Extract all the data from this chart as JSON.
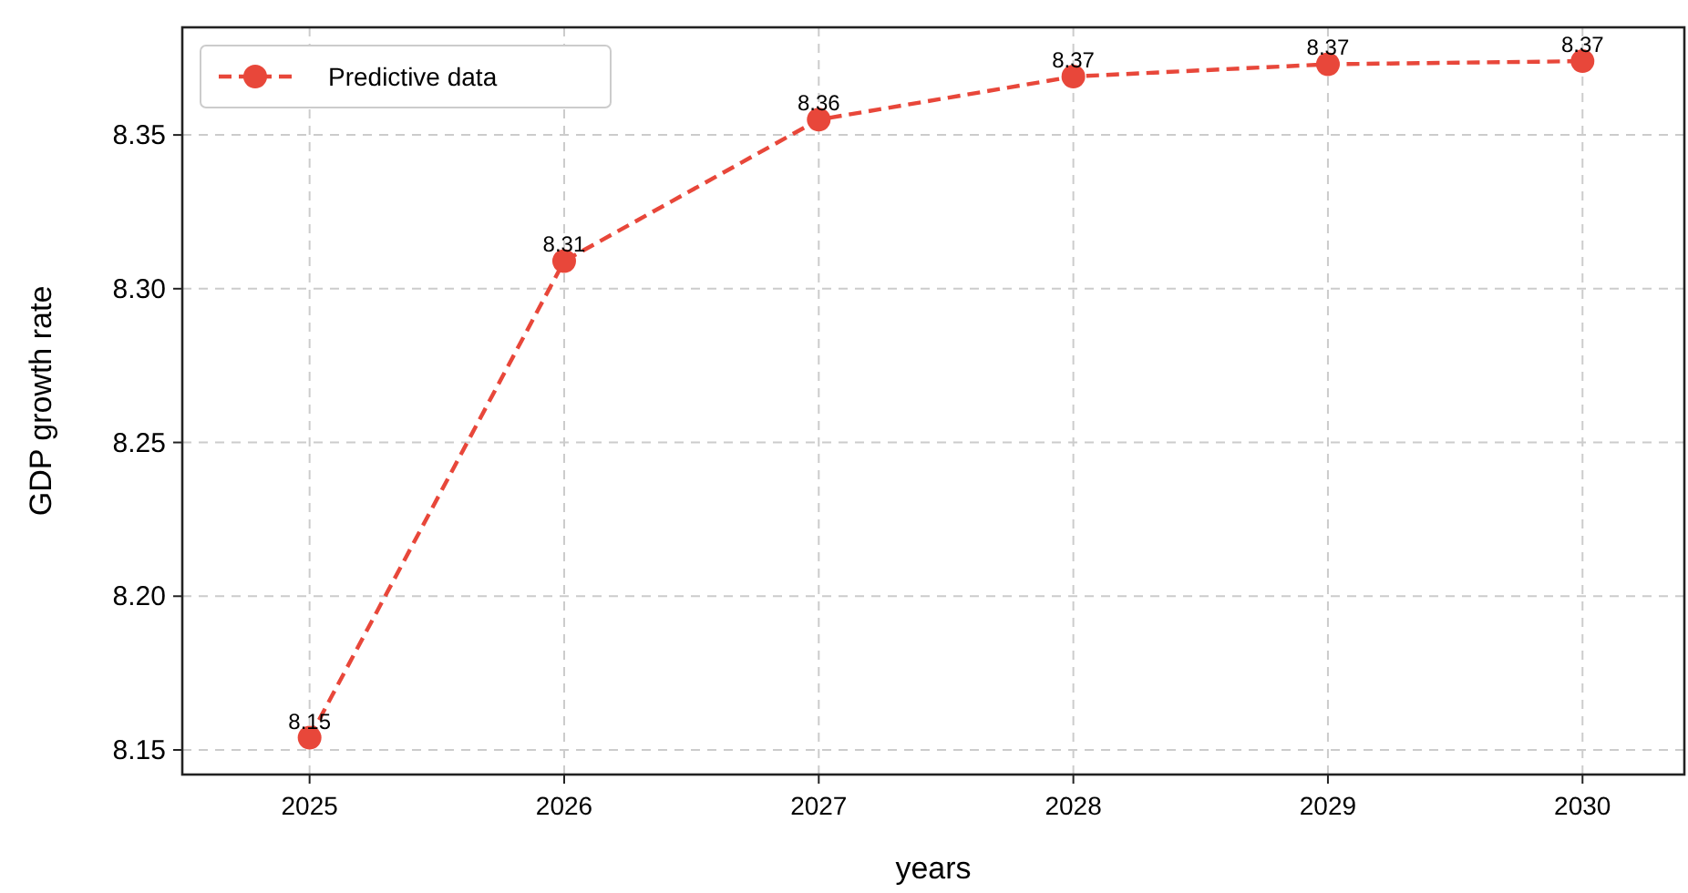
{
  "chart_data": {
    "type": "line",
    "xlabel": "years",
    "ylabel": "GDP growth rate",
    "x": [
      2025,
      2026,
      2027,
      2028,
      2029,
      2030
    ],
    "series": [
      {
        "name": "Predictive data",
        "color": "#e8473a",
        "values": [
          8.154,
          8.309,
          8.355,
          8.369,
          8.373,
          8.374
        ],
        "value_labels": [
          "8.15",
          "8.31",
          "8.36",
          "8.37",
          "8.37",
          "8.37"
        ]
      }
    ],
    "xlim": [
      2024.5,
      2030.4
    ],
    "xticks": [
      2025,
      2026,
      2027,
      2028,
      2029,
      2030
    ],
    "ylim": [
      8.142,
      8.385
    ],
    "yticks": [
      8.15,
      {
        "value": 8.2,
        "label": "8.20"
      },
      8.25,
      {
        "value": 8.3,
        "label": "8.30"
      },
      8.35
    ],
    "grid": true,
    "legend": "top left",
    "marker": "circle",
    "line_style": "dashed"
  }
}
